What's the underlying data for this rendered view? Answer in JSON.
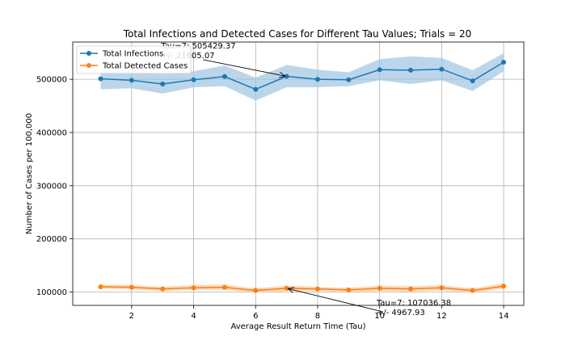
{
  "chart_data": {
    "type": "line",
    "title": "Total Infections and Detected Cases for Different Tau Values; Trials = 20",
    "xlabel": "Average Result Return Time (Tau)",
    "ylabel": "Number of Cases per 100,000",
    "xlim": [
      0.1,
      14.65
    ],
    "ylim": [
      75000,
      570000
    ],
    "xticks": [
      2,
      4,
      6,
      8,
      10,
      12,
      14
    ],
    "yticks": [
      100000,
      200000,
      300000,
      400000,
      500000
    ],
    "grid": true,
    "legend_position": "top-left",
    "x": [
      1,
      2,
      3,
      4,
      5,
      6,
      7,
      8,
      9,
      10,
      11,
      12,
      13,
      14
    ],
    "series": [
      {
        "name": "Total Infections",
        "color": "#1f77b4",
        "band_color": "#9ec5e3",
        "values": [
          501000,
          498000,
          491000,
          499000,
          505000,
          481000,
          505429.37,
          500000,
          499000,
          518000,
          517000,
          519000,
          497000,
          532000
        ],
        "upper": [
          515000,
          514000,
          510000,
          515000,
          526000,
          503000,
          527000,
          518000,
          513000,
          538000,
          543000,
          540000,
          517000,
          549000
        ],
        "lower": [
          481000,
          483000,
          473000,
          485000,
          487000,
          460000,
          485000,
          485000,
          487000,
          498000,
          491000,
          498000,
          478000,
          515000
        ]
      },
      {
        "name": "Total Detected Cases",
        "color": "#ff7f0e",
        "band_color": "#ffc89a",
        "values": [
          110000,
          109000,
          106000,
          108000,
          109000,
          103000,
          107036.38,
          106000,
          104000,
          107000,
          106000,
          108000,
          103000,
          111000
        ],
        "upper": [
          114000,
          113000,
          110000,
          113000,
          114000,
          107000,
          112000,
          110000,
          108000,
          112000,
          111000,
          113000,
          107000,
          116000
        ],
        "lower": [
          106000,
          105000,
          102000,
          104000,
          104000,
          99000,
          102000,
          102000,
          100000,
          102000,
          101000,
          103000,
          99000,
          106000
        ]
      }
    ],
    "annotations": [
      {
        "line1": "Tau=7: 505429.37",
        "line2": "+/- 21605.07",
        "x": 7,
        "y": 505429.37,
        "text_x": 2.95,
        "text_y": 558000
      },
      {
        "line1": "Tau=7: 107036.38",
        "line2": "+/- 4967.93",
        "x": 7,
        "y": 107036.38,
        "text_x": 9.9,
        "text_y": 75000
      }
    ]
  }
}
